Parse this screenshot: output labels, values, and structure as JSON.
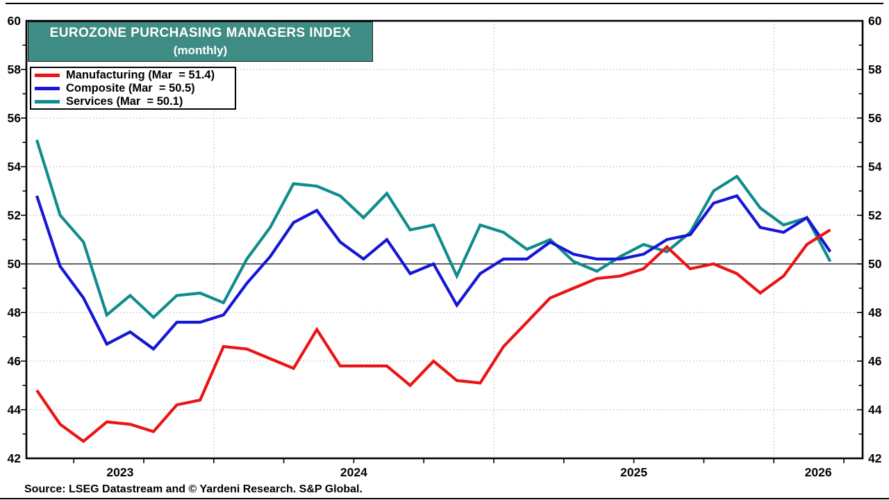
{
  "title": {
    "line1": "EUROZONE PURCHASING MANAGERS INDEX",
    "line2": "(monthly)"
  },
  "legend": [
    {
      "label": "Manufacturing (Mar  = 51.4)",
      "color": "#EB1414"
    },
    {
      "label": "Composite (Mar  = 50.5)",
      "color": "#1616D6"
    },
    {
      "label": "Services (Mar  = 50.1)",
      "color": "#108C8C"
    }
  ],
  "source": "Source: LSEG Datastream and © Yardeni Research. S&P Global.",
  "colors": {
    "title_background": "#3F8C84",
    "gridline": "#C9C9C9",
    "axis": "#000000"
  },
  "chart_data": {
    "type": "line",
    "title": "EUROZONE PURCHASING MANAGERS INDEX (monthly)",
    "frequency": "monthly",
    "x_start": "2023-05",
    "x_end": "2026-03",
    "x_year_labels": [
      "2023",
      "2024",
      "2025",
      "2026"
    ],
    "y_ticks": [
      42,
      44,
      46,
      48,
      50,
      52,
      54,
      56,
      58,
      60
    ],
    "ylim": [
      42,
      60
    ],
    "reference_line": 50.0,
    "grid": "dotted horizontal lines at even values (50 solid black); dotted vertical lines at January of each year; quarterly tick marks on x-axis",
    "legend_position": "top-left",
    "series": [
      {
        "name": "Manufacturing",
        "color": "#EB1414",
        "latest_label": "Mar = 51.4",
        "values": [
          44.8,
          43.4,
          42.7,
          43.5,
          43.4,
          43.1,
          44.2,
          44.4,
          46.6,
          46.5,
          46.1,
          45.7,
          47.3,
          45.8,
          45.8,
          45.8,
          45.0,
          46.0,
          45.2,
          45.1,
          46.6,
          47.6,
          48.6,
          49.0,
          49.4,
          49.5,
          49.8,
          50.7,
          49.8,
          50.0,
          49.6,
          48.8,
          49.5,
          50.8,
          51.4
        ]
      },
      {
        "name": "Composite",
        "color": "#1616D6",
        "latest_label": "Mar = 50.5",
        "values": [
          52.8,
          49.9,
          48.6,
          46.7,
          47.2,
          46.5,
          47.6,
          47.6,
          47.9,
          49.2,
          50.3,
          51.7,
          52.2,
          50.9,
          50.2,
          51.0,
          49.6,
          50.0,
          48.3,
          49.6,
          50.2,
          50.2,
          50.9,
          50.4,
          50.2,
          50.2,
          50.4,
          51.0,
          51.2,
          52.5,
          52.8,
          51.5,
          51.3,
          51.9,
          50.5
        ]
      },
      {
        "name": "Services",
        "color": "#108C8C",
        "latest_label": "Mar = 50.1",
        "values": [
          55.1,
          52.0,
          50.9,
          47.9,
          48.7,
          47.8,
          48.7,
          48.8,
          48.4,
          50.2,
          51.5,
          53.3,
          53.2,
          52.8,
          51.9,
          52.9,
          51.4,
          51.6,
          49.5,
          51.6,
          51.3,
          50.6,
          51.0,
          50.1,
          49.7,
          50.3,
          50.8,
          50.5,
          51.3,
          53.0,
          53.6,
          52.3,
          51.6,
          51.9,
          50.1
        ]
      }
    ]
  }
}
